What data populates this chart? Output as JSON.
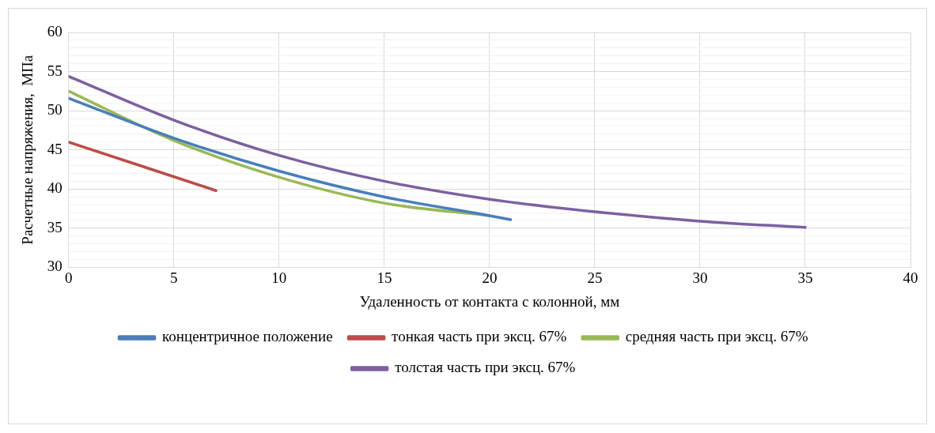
{
  "chart_data": {
    "type": "line",
    "xlabel": "Удаленность от контакта с колонной, мм",
    "ylabel": "Расчетные напряжения,  МПа",
    "xlim": [
      0,
      40
    ],
    "xticks": [
      0,
      5,
      10,
      15,
      20,
      25,
      30,
      35,
      40
    ],
    "ylim": [
      30,
      60
    ],
    "yticks": [
      30,
      {
        "value": 31,
        "label": null
      },
      {
        "value": 32,
        "label": null
      },
      {
        "value": 33,
        "label": null
      },
      {
        "value": 34,
        "label": null
      },
      35,
      {
        "value": 36,
        "label": null
      },
      {
        "value": 37,
        "label": null
      },
      {
        "value": 38,
        "label": null
      },
      {
        "value": 39,
        "label": null
      },
      40,
      {
        "value": 41,
        "label": null
      },
      {
        "value": 42,
        "label": null
      },
      {
        "value": 43,
        "label": null
      },
      {
        "value": 44,
        "label": null
      },
      45,
      {
        "value": 46,
        "label": null
      },
      {
        "value": 47,
        "label": null
      },
      {
        "value": 48,
        "label": null
      },
      {
        "value": 49,
        "label": null
      },
      50,
      {
        "value": 51,
        "label": null
      },
      {
        "value": 52,
        "label": null
      },
      {
        "value": 53,
        "label": null
      },
      {
        "value": 54,
        "label": null
      },
      55,
      {
        "value": 56,
        "label": null
      },
      {
        "value": 57,
        "label": null
      },
      {
        "value": 58,
        "label": null
      },
      {
        "value": 59,
        "label": null
      },
      60
    ],
    "grid": true,
    "legend": "bottom",
    "marker": "none",
    "line_style": "solid",
    "series": [
      {
        "name": "концентричное положение",
        "color": "#4a7ebb",
        "x": [
          0,
          5,
          10,
          15,
          20,
          21
        ],
        "values": [
          51.6,
          46.5,
          42.3,
          39.0,
          36.6,
          36.1
        ]
      },
      {
        "name": "тонкая часть при эксц. 67%",
        "color": "#be4b48",
        "x": [
          0,
          7
        ],
        "values": [
          46.0,
          39.8
        ]
      },
      {
        "name": "средняя часть при эксц. 67%",
        "color": "#98b954",
        "x": [
          0,
          5,
          10,
          15,
          20
        ],
        "values": [
          52.5,
          46.2,
          41.5,
          38.2,
          36.6
        ]
      },
      {
        "name": "толстая часть при эксц. 67%",
        "color": "#7d60a0",
        "x": [
          0,
          5,
          10,
          15,
          20,
          25,
          30,
          35
        ],
        "values": [
          54.4,
          48.8,
          44.3,
          41.0,
          38.7,
          37.1,
          35.9,
          35.1
        ]
      }
    ]
  }
}
